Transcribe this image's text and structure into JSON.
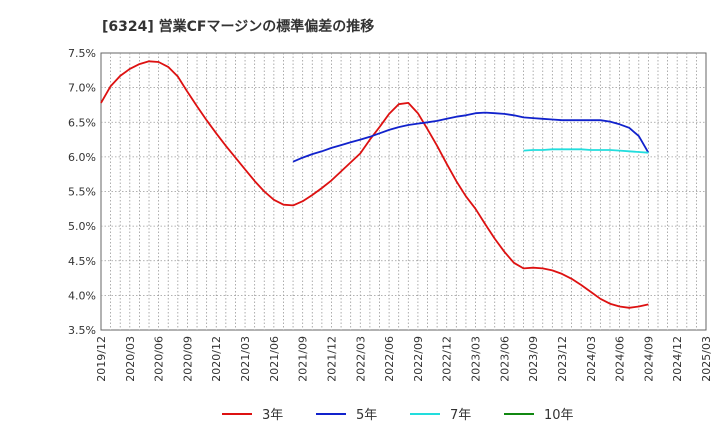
{
  "chart_data": {
    "type": "line",
    "title": "[6324]  営業CFマージンの標準偏差の推移",
    "xlabel": "",
    "ylabel": "",
    "x_tick_labels": [
      "2019/12",
      "2020/03",
      "2020/06",
      "2020/09",
      "2020/12",
      "2021/03",
      "2021/06",
      "2021/09",
      "2021/12",
      "2022/03",
      "2022/06",
      "2022/09",
      "2022/12",
      "2023/03",
      "2023/06",
      "2023/09",
      "2023/12",
      "2024/03",
      "2024/06",
      "2024/09",
      "2024/12",
      "2025/03"
    ],
    "y_ticks": [
      3.5,
      4.0,
      4.5,
      5.0,
      5.5,
      6.0,
      6.5,
      7.0,
      7.5
    ],
    "y_tick_labels": [
      "3.5%",
      "4.0%",
      "4.5%",
      "5.0%",
      "5.5%",
      "6.0%",
      "6.5%",
      "7.0%",
      "7.5%"
    ],
    "ylim": [
      3.5,
      7.5
    ],
    "grid": true,
    "legend_position": "bottom",
    "series": [
      {
        "name": "3年",
        "color": "#dd1111",
        "points": [
          [
            "2019/12",
            6.78
          ],
          [
            "2020/01",
            7.02
          ],
          [
            "2020/02",
            7.17
          ],
          [
            "2020/03",
            7.27
          ],
          [
            "2020/04",
            7.34
          ],
          [
            "2020/05",
            7.38
          ],
          [
            "2020/06",
            7.37
          ],
          [
            "2020/07",
            7.3
          ],
          [
            "2020/08",
            7.16
          ],
          [
            "2020/09",
            6.94
          ],
          [
            "2020/10",
            6.73
          ],
          [
            "2020/11",
            6.53
          ],
          [
            "2020/12",
            6.34
          ],
          [
            "2021/01",
            6.16
          ],
          [
            "2021/02",
            5.99
          ],
          [
            "2021/03",
            5.82
          ],
          [
            "2021/04",
            5.65
          ],
          [
            "2021/05",
            5.5
          ],
          [
            "2021/06",
            5.38
          ],
          [
            "2021/07",
            5.31
          ],
          [
            "2021/08",
            5.3
          ],
          [
            "2021/09",
            5.36
          ],
          [
            "2021/10",
            5.45
          ],
          [
            "2021/11",
            5.55
          ],
          [
            "2021/12",
            5.66
          ],
          [
            "2022/01",
            5.79
          ],
          [
            "2022/02",
            5.92
          ],
          [
            "2022/03",
            6.05
          ],
          [
            "2022/04",
            6.25
          ],
          [
            "2022/05",
            6.43
          ],
          [
            "2022/06",
            6.62
          ],
          [
            "2022/07",
            6.76
          ],
          [
            "2022/08",
            6.78
          ],
          [
            "2022/09",
            6.63
          ],
          [
            "2022/10",
            6.4
          ],
          [
            "2022/11",
            6.16
          ],
          [
            "2022/12",
            5.9
          ],
          [
            "2023/01",
            5.65
          ],
          [
            "2023/02",
            5.43
          ],
          [
            "2023/03",
            5.25
          ],
          [
            "2023/04",
            5.03
          ],
          [
            "2023/05",
            4.82
          ],
          [
            "2023/06",
            4.63
          ],
          [
            "2023/07",
            4.47
          ],
          [
            "2023/08",
            4.39
          ],
          [
            "2023/09",
            4.4
          ],
          [
            "2023/10",
            4.39
          ],
          [
            "2023/11",
            4.36
          ],
          [
            "2023/12",
            4.31
          ],
          [
            "2024/01",
            4.24
          ],
          [
            "2024/02",
            4.15
          ],
          [
            "2024/03",
            4.05
          ],
          [
            "2024/04",
            3.95
          ],
          [
            "2024/05",
            3.88
          ],
          [
            "2024/06",
            3.84
          ],
          [
            "2024/07",
            3.82
          ],
          [
            "2024/08",
            3.84
          ],
          [
            "2024/09",
            3.87
          ]
        ]
      },
      {
        "name": "5年",
        "color": "#1122cc",
        "points": [
          [
            "2021/08",
            5.93
          ],
          [
            "2021/09",
            5.99
          ],
          [
            "2021/10",
            6.04
          ],
          [
            "2021/11",
            6.08
          ],
          [
            "2021/12",
            6.13
          ],
          [
            "2022/01",
            6.17
          ],
          [
            "2022/02",
            6.21
          ],
          [
            "2022/03",
            6.25
          ],
          [
            "2022/04",
            6.29
          ],
          [
            "2022/05",
            6.34
          ],
          [
            "2022/06",
            6.39
          ],
          [
            "2022/07",
            6.43
          ],
          [
            "2022/08",
            6.46
          ],
          [
            "2022/09",
            6.48
          ],
          [
            "2022/10",
            6.5
          ],
          [
            "2022/11",
            6.52
          ],
          [
            "2022/12",
            6.55
          ],
          [
            "2023/01",
            6.58
          ],
          [
            "2023/02",
            6.6
          ],
          [
            "2023/03",
            6.63
          ],
          [
            "2023/04",
            6.64
          ],
          [
            "2023/05",
            6.63
          ],
          [
            "2023/06",
            6.62
          ],
          [
            "2023/07",
            6.6
          ],
          [
            "2023/08",
            6.57
          ],
          [
            "2023/09",
            6.56
          ],
          [
            "2023/10",
            6.55
          ],
          [
            "2023/11",
            6.54
          ],
          [
            "2023/12",
            6.53
          ],
          [
            "2024/01",
            6.53
          ],
          [
            "2024/02",
            6.53
          ],
          [
            "2024/03",
            6.53
          ],
          [
            "2024/04",
            6.53
          ],
          [
            "2024/05",
            6.51
          ],
          [
            "2024/06",
            6.47
          ],
          [
            "2024/07",
            6.42
          ],
          [
            "2024/08",
            6.3
          ],
          [
            "2024/09",
            6.06
          ]
        ]
      },
      {
        "name": "7年",
        "color": "#22dddd",
        "points": [
          [
            "2023/08",
            6.09
          ],
          [
            "2023/09",
            6.1
          ],
          [
            "2023/10",
            6.1
          ],
          [
            "2023/11",
            6.11
          ],
          [
            "2023/12",
            6.11
          ],
          [
            "2024/01",
            6.11
          ],
          [
            "2024/02",
            6.11
          ],
          [
            "2024/03",
            6.1
          ],
          [
            "2024/04",
            6.1
          ],
          [
            "2024/05",
            6.1
          ],
          [
            "2024/06",
            6.09
          ],
          [
            "2024/07",
            6.08
          ],
          [
            "2024/08",
            6.07
          ],
          [
            "2024/09",
            6.06
          ]
        ]
      },
      {
        "name": "10年",
        "color": "#118811",
        "points": []
      }
    ]
  }
}
